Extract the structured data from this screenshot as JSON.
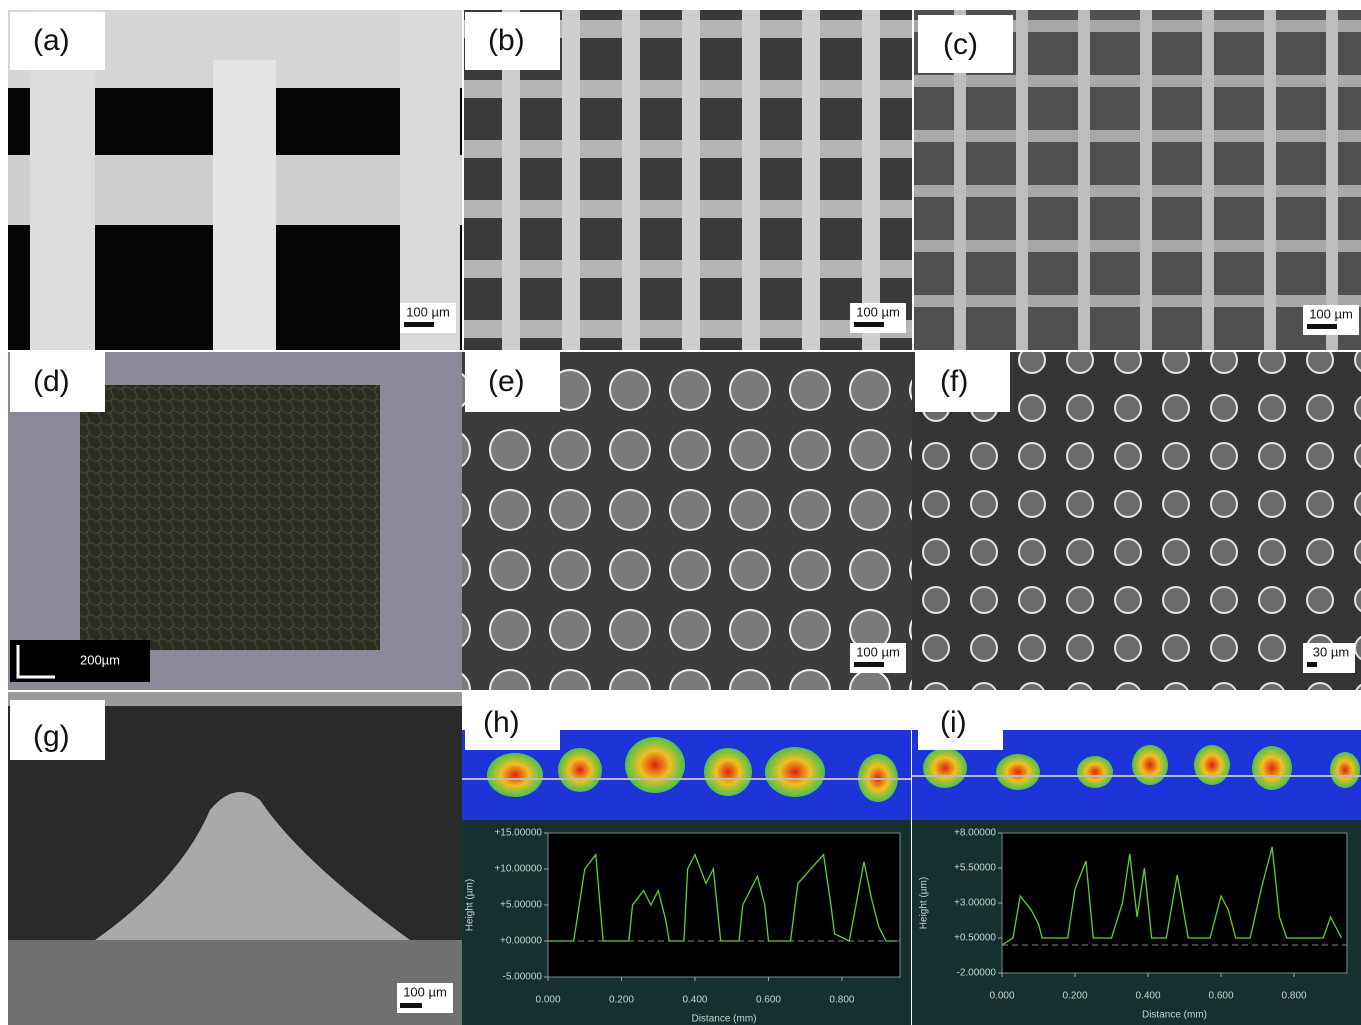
{
  "panels": [
    {
      "label": "(a)",
      "scale_bar": "100 µm"
    },
    {
      "label": "(b)",
      "scale_bar": "100 µm"
    },
    {
      "label": "(c)",
      "scale_bar": "100 µm"
    },
    {
      "label": "(d)",
      "scale_bar": "200µm"
    },
    {
      "label": "(e)",
      "scale_bar": "100 µm"
    },
    {
      "label": "(f)",
      "scale_bar": "30 µm"
    },
    {
      "label": "(g)",
      "scale_bar": "100 µm"
    },
    {
      "label": "(h)"
    },
    {
      "label": "(i)"
    }
  ],
  "chart_data": [
    {
      "type": "line",
      "xlabel": "Distance (mm)",
      "ylabel": "Height (µm)",
      "color": "#5fd12a",
      "x": [
        0,
        0.07,
        0.1,
        0.13,
        0.15,
        0.22,
        0.23,
        0.26,
        0.28,
        0.3,
        0.32,
        0.33,
        0.37,
        0.38,
        0.4,
        0.43,
        0.45,
        0.47,
        0.52,
        0.53,
        0.57,
        0.59,
        0.6,
        0.66,
        0.68,
        0.75,
        0.77,
        0.78,
        0.82,
        0.86,
        0.88,
        0.9,
        0.92,
        0.95
      ],
      "values": [
        0,
        0,
        10,
        12,
        0,
        0,
        5,
        7,
        5,
        7,
        3,
        0,
        0,
        10,
        12,
        8,
        10,
        0,
        0,
        5,
        9,
        5,
        0,
        0,
        8,
        12,
        5,
        1,
        0,
        11,
        6,
        2,
        0,
        0
      ],
      "xlim": [
        0,
        0.958
      ],
      "ylim": [
        -5,
        15
      ],
      "xticks": [
        {
          "value": 0,
          "label": "0.000"
        },
        {
          "value": 0.2,
          "label": "0.200"
        },
        {
          "value": 0.4,
          "label": "0.400"
        },
        {
          "value": 0.6,
          "label": "0.600"
        },
        {
          "value": 0.8,
          "label": "0.800"
        }
      ],
      "yticks": [
        {
          "value": 15,
          "label": "+15.00000"
        },
        {
          "value": 10,
          "label": "+10.00000"
        },
        {
          "value": 5,
          "label": "+5.00000"
        },
        {
          "value": 0,
          "label": "+0.00000"
        },
        {
          "value": -5,
          "label": "-5.00000"
        }
      ]
    },
    {
      "type": "line",
      "xlabel": "Distance (mm)",
      "ylabel": "Height (µm)",
      "color": "#5fd12a",
      "x": [
        0,
        0.03,
        0.05,
        0.08,
        0.1,
        0.11,
        0.18,
        0.2,
        0.23,
        0.25,
        0.3,
        0.33,
        0.35,
        0.37,
        0.39,
        0.41,
        0.45,
        0.48,
        0.51,
        0.57,
        0.6,
        0.62,
        0.64,
        0.68,
        0.71,
        0.74,
        0.76,
        0.78,
        0.88,
        0.9,
        0.93
      ],
      "values": [
        0,
        0.5,
        3.5,
        2.5,
        1.5,
        0.5,
        0.5,
        4,
        6,
        0.5,
        0.5,
        3,
        6.5,
        2,
        5.5,
        0.5,
        0.5,
        5,
        0.5,
        0.5,
        3.5,
        2.5,
        0.5,
        0.5,
        4,
        7,
        2,
        0.5,
        0.5,
        2,
        0.5
      ],
      "xlim": [
        0,
        0.945
      ],
      "ylim": [
        -2,
        8
      ],
      "xticks": [
        {
          "value": 0,
          "label": "0.000"
        },
        {
          "value": 0.2,
          "label": "0.200"
        },
        {
          "value": 0.4,
          "label": "0.400"
        },
        {
          "value": 0.6,
          "label": "0.600"
        },
        {
          "value": 0.8,
          "label": "0.800"
        }
      ],
      "yticks": [
        {
          "value": 8,
          "label": "+8.00000"
        },
        {
          "value": 5.5,
          "label": "+5.50000"
        },
        {
          "value": 3,
          "label": "+3.00000"
        },
        {
          "value": 0.5,
          "label": "+0.50000"
        },
        {
          "value": -2,
          "label": "-2.00000"
        }
      ]
    }
  ]
}
